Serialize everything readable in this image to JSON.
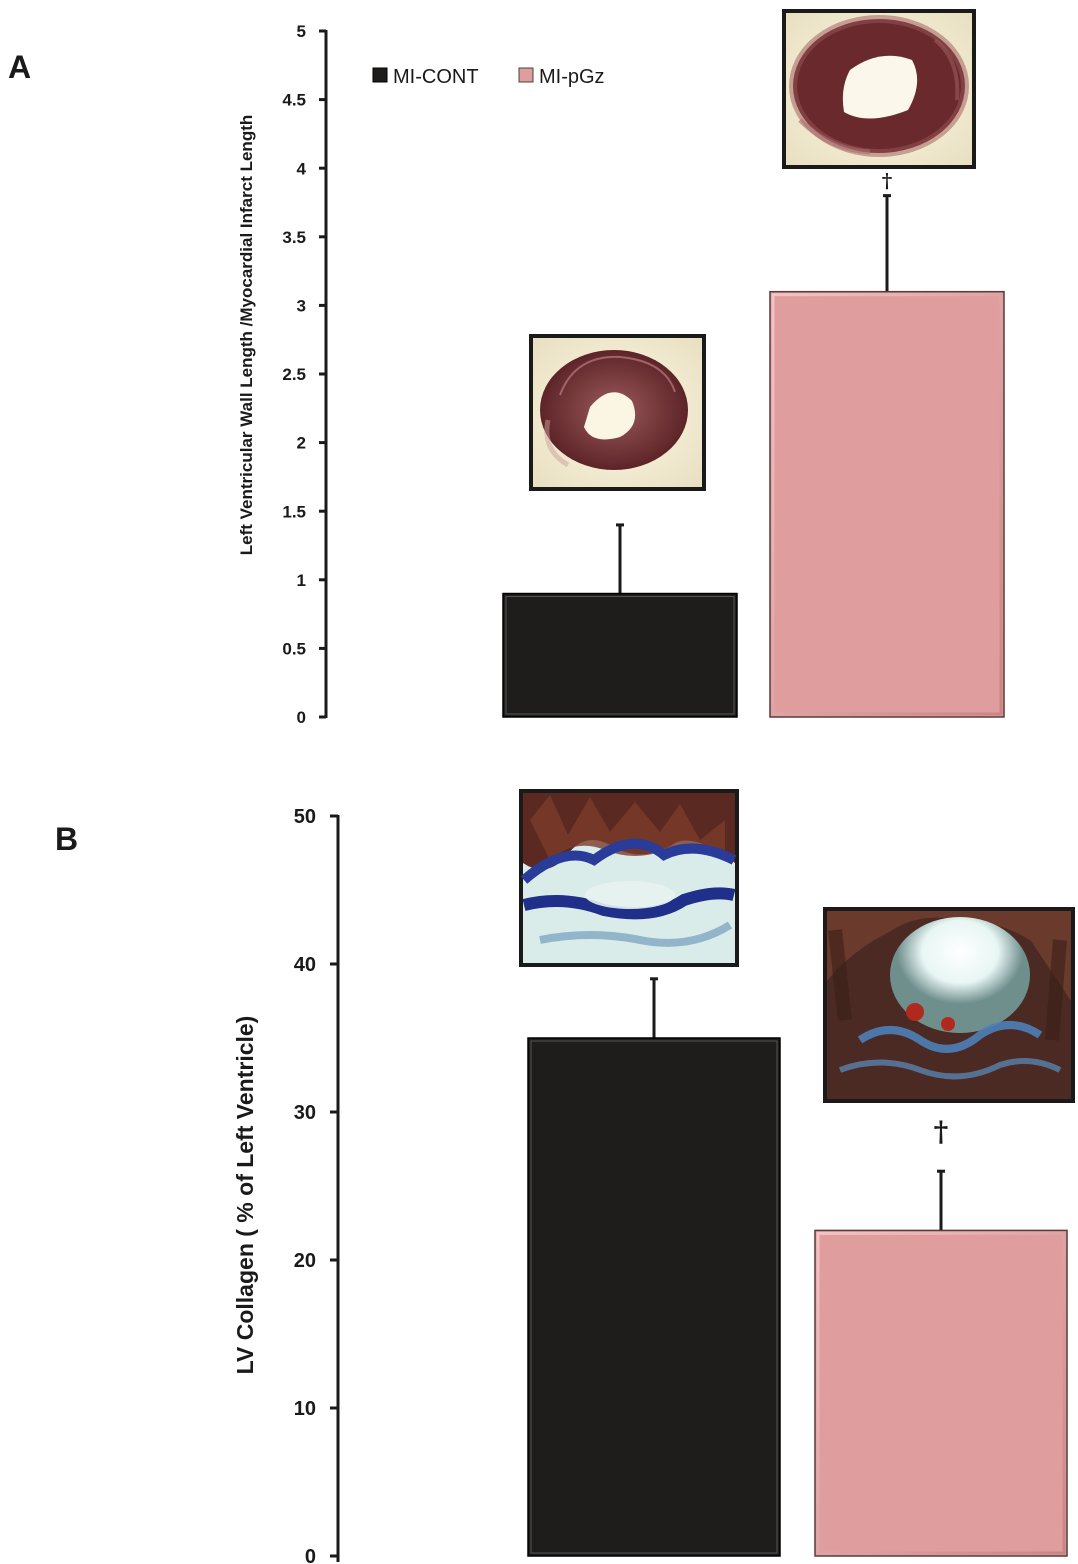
{
  "colors": {
    "mi_cont": "#1f1c1c",
    "mi_pgz": "#e09d9d",
    "axis": "#1a1a1a"
  },
  "chart_data": [
    {
      "panel": "A",
      "type": "bar",
      "categories": [
        "MI-CONT",
        "MI-pGz"
      ],
      "series": [
        {
          "values": [
            0.9,
            3.1
          ]
        }
      ],
      "errors_upper": [
        1.4,
        3.8
      ],
      "significance": [
        "",
        "†"
      ],
      "ylabel": "Left Ventricular Wall Length /Myocardial Infarct Length",
      "ylim": [
        0,
        5
      ],
      "yticks": [
        "0",
        "0.5",
        "1",
        "1.5",
        "2",
        "2.5",
        "3",
        "3.5",
        "4",
        "4.5",
        "5"
      ],
      "ytick_values": [
        0,
        0.5,
        1,
        1.5,
        2,
        2.5,
        3,
        3.5,
        4,
        4.5,
        5
      ],
      "legend": [
        {
          "label": "MI-CONT",
          "color": "#1f1c1c"
        },
        {
          "label": "MI-pGz",
          "color": "#e09d9d"
        }
      ],
      "legend_position": "top-left",
      "grid": false,
      "inset_images": [
        "heart-cross-section-photo-mi-cont",
        "heart-cross-section-photo-mi-pgz"
      ]
    },
    {
      "panel": "B",
      "type": "bar",
      "categories": [
        "MI-CONT",
        "MI-pGz"
      ],
      "series": [
        {
          "values": [
            35,
            22
          ]
        }
      ],
      "errors_upper": [
        39,
        26
      ],
      "significance": [
        "",
        "†"
      ],
      "ylabel": "LV Collagen ( % of Left Ventricle)",
      "ylim": [
        0,
        50
      ],
      "yticks": [
        "0",
        "10",
        "20",
        "30",
        "40",
        "50"
      ],
      "ytick_values": [
        0,
        10,
        20,
        30,
        40,
        50
      ],
      "grid": false,
      "inset_images": [
        "collagen-stained-section-photo-mi-cont",
        "collagen-stained-section-photo-mi-pgz"
      ]
    }
  ]
}
